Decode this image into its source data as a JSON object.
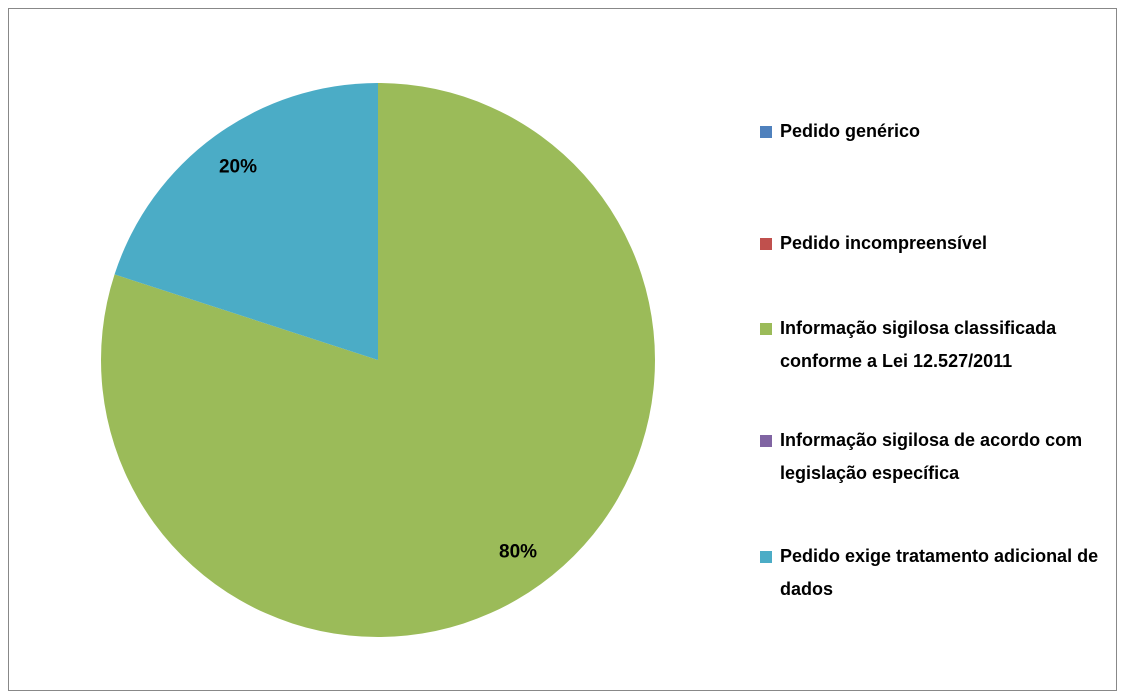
{
  "chart_data": {
    "type": "pie",
    "categories": [
      "Pedido genérico",
      "Pedido incompreensível",
      "Informação sigilosa classificada conforme a Lei 12.527/2011",
      "Informação sigilosa de acordo com legislação específica",
      "Pedido exige tratamento adicional de dados"
    ],
    "values": [
      0,
      0,
      80,
      0,
      20
    ],
    "value_labels": [
      null,
      null,
      "80%",
      null,
      "20%"
    ],
    "colors": [
      "#4f81bd",
      "#c0504d",
      "#9bbb59",
      "#8064a2",
      "#4bacc6"
    ],
    "legend": "right"
  }
}
